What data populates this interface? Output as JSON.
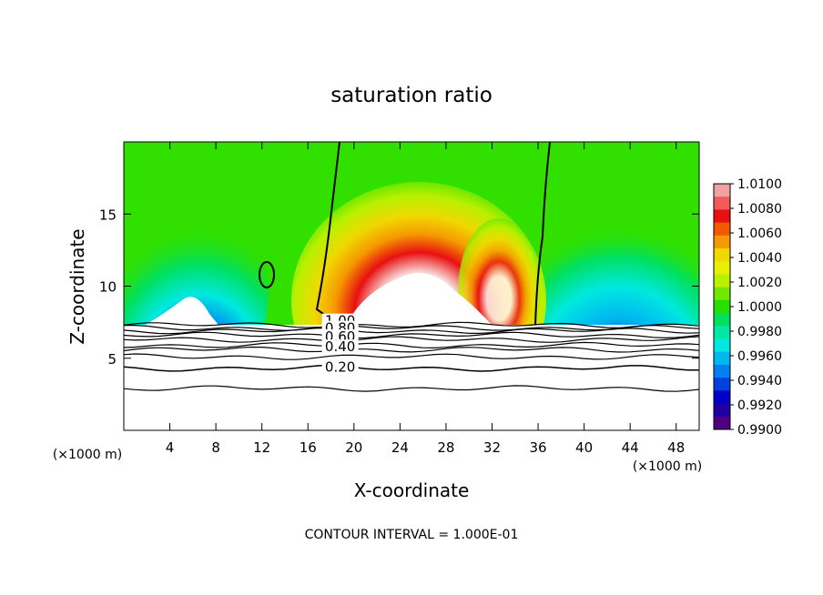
{
  "chart_data": {
    "type": "heatmap",
    "title": "saturation ratio",
    "xlabel": "X-coordinate",
    "ylabel": "Z-coordinate",
    "x_unit_left": "(×1000 m)",
    "x_unit_right": "(×1000 m)",
    "xlim": [
      0,
      50
    ],
    "ylim": [
      0,
      20
    ],
    "x_ticks": [
      4,
      8,
      12,
      16,
      20,
      24,
      28,
      32,
      36,
      40,
      44,
      48
    ],
    "y_ticks": [
      5,
      10,
      15
    ],
    "colorbar": {
      "labels": [
        "1.0100",
        "1.0080",
        "1.0060",
        "1.0040",
        "1.0020",
        "1.0000",
        "0.9980",
        "0.9960",
        "0.9940",
        "0.9920",
        "0.9900"
      ],
      "values": [
        1.01,
        1.008,
        1.006,
        1.004,
        1.002,
        1.0,
        0.998,
        0.996,
        0.994,
        0.992,
        0.99
      ],
      "colors": [
        "#f4a0a0",
        "#f25a5a",
        "#e81010",
        "#f25a00",
        "#f59a00",
        "#f0d800",
        "#e8f000",
        "#b8f000",
        "#70e800",
        "#28e000",
        "#00e060",
        "#00e8a8",
        "#00e8e0",
        "#00b8f0",
        "#0080f0",
        "#0040e0",
        "#0000c8",
        "#2000a0",
        "#500080"
      ]
    },
    "contour_labels": [
      {
        "text": "1.00",
        "x": 18.8,
        "y": 7.4
      },
      {
        "text": "0.80",
        "x": 18.8,
        "y": 6.9
      },
      {
        "text": "0.60",
        "x": 18.8,
        "y": 6.3
      },
      {
        "text": "0.40",
        "x": 18.8,
        "y": 5.6
      },
      {
        "text": "0.20",
        "x": 18.8,
        "y": 4.2
      }
    ],
    "grid": false,
    "legend_position": "right",
    "footer": "CONTOUR INTERVAL = 1.000E-01"
  }
}
